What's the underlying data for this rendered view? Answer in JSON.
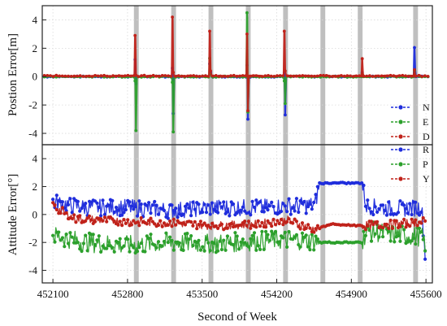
{
  "chart_data": [
    {
      "type": "line",
      "panel": "top",
      "ylabel": "Postion Error[m]",
      "ylim": [
        -4.8,
        5.0
      ],
      "yticks": [
        -4,
        -2,
        0,
        2,
        4
      ],
      "ytick_labels": [
        "-4",
        "-2",
        "0",
        "2",
        "4"
      ],
      "xlim": [
        452000,
        455660
      ],
      "grid": true,
      "legend_placement": "right",
      "shaded_intervals": [
        [
          452860,
          452905
        ],
        [
          453210,
          453255
        ],
        [
          453560,
          453605
        ],
        [
          453910,
          453955
        ],
        [
          454260,
          454305
        ],
        [
          454610,
          454655
        ],
        [
          454960,
          455005
        ],
        [
          455480,
          455525
        ]
      ],
      "series": [
        {
          "name": "N",
          "color": "#1f2ddc",
          "dash": "dashed",
          "baseline": 0.0,
          "events": [
            [
              452875,
              1.2,
              -0.5
            ],
            [
              453225,
              0.6,
              -2.6
            ],
            [
              453575,
              0.9,
              0.3
            ],
            [
              453925,
              0.8,
              -3.0
            ],
            [
              454275,
              0.3,
              -2.7
            ],
            [
              455005,
              0.3,
              0.1
            ],
            [
              455495,
              2.1,
              0.5
            ]
          ]
        },
        {
          "name": "E",
          "color": "#2ca02c",
          "dash": "dashed",
          "baseline": 0.0,
          "events": [
            [
              452875,
              -0.3,
              -3.8
            ],
            [
              453225,
              -0.4,
              -3.9
            ],
            [
              453575,
              1.3,
              0.2
            ],
            [
              453925,
              4.5,
              -2.5
            ],
            [
              454275,
              -0.3,
              -1.9
            ],
            [
              455005,
              0.2,
              0.0
            ],
            [
              455495,
              0.4,
              0.1
            ]
          ]
        },
        {
          "name": "D",
          "color": "#c0221a",
          "dash": "dashed",
          "baseline": 0.05,
          "events": [
            [
              452875,
              2.9,
              0.1
            ],
            [
              453225,
              4.2,
              0.3
            ],
            [
              453575,
              3.2,
              0.4
            ],
            [
              453925,
              3.0,
              -2.4
            ],
            [
              454275,
              3.2,
              0.4
            ],
            [
              455005,
              1.3,
              0.2
            ],
            [
              455495,
              0.5,
              0.1
            ]
          ]
        }
      ]
    },
    {
      "type": "line",
      "panel": "bottom",
      "ylabel": "Attitude Error[°]",
      "xlabel": "Second of Week",
      "ylim": [
        -4.9,
        5.0
      ],
      "yticks": [
        -4,
        -2,
        0,
        2,
        4
      ],
      "ytick_labels": [
        "-4",
        "-2",
        "0",
        "2",
        "4"
      ],
      "xlim": [
        452000,
        455660
      ],
      "xticks": [
        452100,
        452800,
        453500,
        454200,
        454900,
        455600
      ],
      "xtick_labels": [
        "452100",
        "452800",
        "453500",
        "454200",
        "454900",
        "455600"
      ],
      "grid": true,
      "legend_placement": "top-right",
      "shaded_intervals": [
        [
          452860,
          452905
        ],
        [
          453210,
          453255
        ],
        [
          453560,
          453605
        ],
        [
          453910,
          453955
        ],
        [
          454260,
          454305
        ],
        [
          454610,
          454655
        ],
        [
          454960,
          455005
        ],
        [
          455480,
          455525
        ]
      ],
      "series": [
        {
          "name": "R",
          "color": "#1f2ddc",
          "dash": "dashed",
          "profile": [
            [
              452100,
              0.9
            ],
            [
              452400,
              0.5
            ],
            [
              452800,
              0.5
            ],
            [
              453200,
              0.3
            ],
            [
              453600,
              0.5
            ],
            [
              454000,
              0.5
            ],
            [
              454300,
              0.6
            ],
            [
              454560,
              0.7
            ],
            [
              454600,
              2.25
            ],
            [
              455000,
              2.25
            ],
            [
              455040,
              0.6
            ],
            [
              455300,
              0.4
            ],
            [
              455560,
              0.5
            ],
            [
              455600,
              -3.6
            ]
          ],
          "noise": 0.6
        },
        {
          "name": "P",
          "color": "#2ca02c",
          "dash": "dashed",
          "profile": [
            [
              452100,
              -1.5
            ],
            [
              452400,
              -2.0
            ],
            [
              452800,
              -2.2
            ],
            [
              453200,
              -2.0
            ],
            [
              453600,
              -2.1
            ],
            [
              454000,
              -1.9
            ],
            [
              454300,
              -1.8
            ],
            [
              454560,
              -1.9
            ],
            [
              454600,
              -2.0
            ],
            [
              455000,
              -2.0
            ],
            [
              455040,
              -1.2
            ],
            [
              455300,
              -1.4
            ],
            [
              455560,
              -1.6
            ],
            [
              455600,
              -2.2
            ]
          ],
          "noise": 0.7
        },
        {
          "name": "Y",
          "color": "#c0221a",
          "dash": "dashed",
          "profile": [
            [
              452100,
              0.6
            ],
            [
              452300,
              -0.3
            ],
            [
              452800,
              -0.5
            ],
            [
              453200,
              -0.6
            ],
            [
              453600,
              -0.8
            ],
            [
              454000,
              -0.7
            ],
            [
              454300,
              -0.4
            ],
            [
              454560,
              -1.1
            ],
            [
              454700,
              -0.7
            ],
            [
              455000,
              -0.8
            ],
            [
              455300,
              -0.7
            ],
            [
              455600,
              -0.5
            ]
          ],
          "noise": 0.3
        }
      ]
    }
  ]
}
